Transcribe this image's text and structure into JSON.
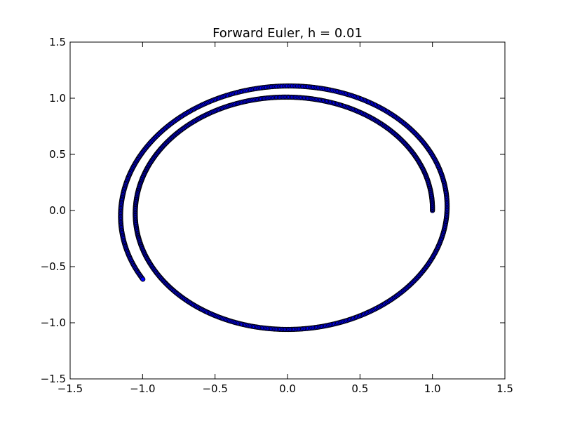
{
  "chart_data": {
    "type": "scatter",
    "title": "Forward Euler, h = 0.01",
    "xlabel": "",
    "ylabel": "",
    "xlim": [
      -1.5,
      1.5
    ],
    "ylim": [
      -1.5,
      1.5
    ],
    "xticks": [
      "−1.5",
      "−1.0",
      "−0.5",
      "0.0",
      "0.5",
      "1.0",
      "1.5"
    ],
    "yticks": [
      "1.5",
      "1.0",
      "0.5",
      "0.0",
      "−0.5",
      "−1.0",
      "−1.5"
    ],
    "xtick_values": [
      -1.5,
      -1.0,
      -0.5,
      0.0,
      0.5,
      1.0,
      1.5
    ],
    "ytick_values": [
      1.5,
      1.0,
      0.5,
      0.0,
      -0.5,
      -1.0,
      -1.5
    ],
    "grid": false,
    "legend": "none",
    "marker_color": "#0000ff",
    "marker_edge_color": "#000000",
    "series": [
      {
        "start": [
          1.0,
          0.0
        ],
        "end": [
          -0.98,
          -0.63
        ],
        "radius_start": 1.0,
        "radius_end": 1.16,
        "turns": 1.59,
        "points": [
          [
            1.0,
            0.0
          ],
          [
            0.92,
            0.42
          ],
          [
            0.72,
            0.75
          ],
          [
            0.41,
            0.96
          ],
          [
            0.03,
            1.03
          ],
          [
            -0.36,
            0.97
          ],
          [
            -0.71,
            0.76
          ],
          [
            -0.96,
            0.45
          ],
          [
            -1.07,
            0.05
          ],
          [
            -1.03,
            -0.38
          ],
          [
            -0.83,
            -0.76
          ],
          [
            -0.49,
            -1.0
          ],
          [
            -0.06,
            -1.08
          ],
          [
            0.39,
            -1.02
          ],
          [
            0.78,
            -0.82
          ],
          [
            1.04,
            -0.49
          ],
          [
            1.1,
            -0.07
          ],
          [
            1.05,
            0.38
          ],
          [
            0.84,
            0.78
          ],
          [
            0.49,
            1.05
          ],
          [
            0.05,
            1.13
          ],
          [
            -0.4,
            1.09
          ],
          [
            -0.8,
            0.87
          ],
          [
            -1.07,
            0.5
          ],
          [
            -1.16,
            0.06
          ],
          [
            -1.13,
            -0.32
          ],
          [
            -0.98,
            -0.63
          ]
        ]
      }
    ]
  }
}
